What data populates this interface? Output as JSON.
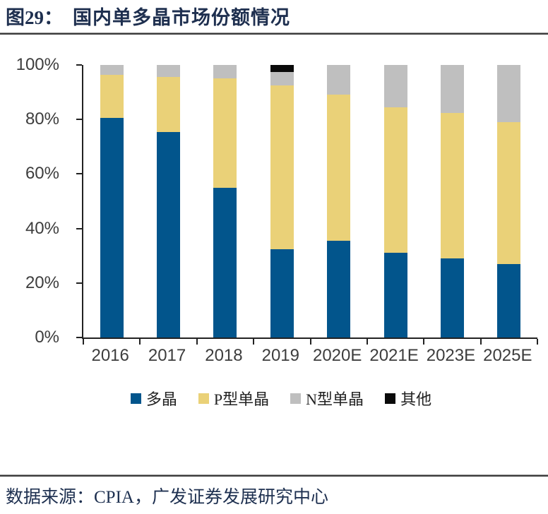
{
  "header": {
    "figure_label": "图29：",
    "title": "国内单多晶市场份额情况"
  },
  "footer": {
    "source": "数据来源：CPIA，广发证券发展研究中心"
  },
  "colors": {
    "title_text": "#1e2f4f",
    "source_text": "#1e3050",
    "axis_line": "#222222",
    "tick_label": "#3d3d3d",
    "rule": "#3c3c3c"
  },
  "chart_data": {
    "type": "bar",
    "stacked": true,
    "title": "国内单多晶市场份额情况",
    "xlabel": "",
    "ylabel": "",
    "categories": [
      "2016",
      "2017",
      "2018",
      "2019",
      "2020E",
      "2021E",
      "2023E",
      "2025E"
    ],
    "series": [
      {
        "name": "多晶",
        "color": "#02558c",
        "values": [
          80.5,
          75.5,
          55.0,
          32.5,
          35.5,
          31.0,
          29.0,
          27.0
        ]
      },
      {
        "name": "P型单晶",
        "color": "#ead178",
        "values": [
          16.0,
          20.0,
          40.0,
          60.0,
          53.5,
          53.5,
          53.5,
          52.0
        ]
      },
      {
        "name": "N型单晶",
        "color": "#bfbfbf",
        "values": [
          3.5,
          4.5,
          5.0,
          5.0,
          11.0,
          15.5,
          17.5,
          21.0
        ]
      },
      {
        "name": "其他",
        "color": "#0a0a0a",
        "values": [
          0,
          0,
          0,
          2.5,
          0,
          0,
          0,
          0
        ]
      }
    ],
    "ylim": [
      0,
      100
    ],
    "yticks": [
      0,
      20,
      40,
      60,
      80,
      100
    ],
    "ytick_suffix": "%",
    "grid": false,
    "legend_position": "bottom"
  }
}
